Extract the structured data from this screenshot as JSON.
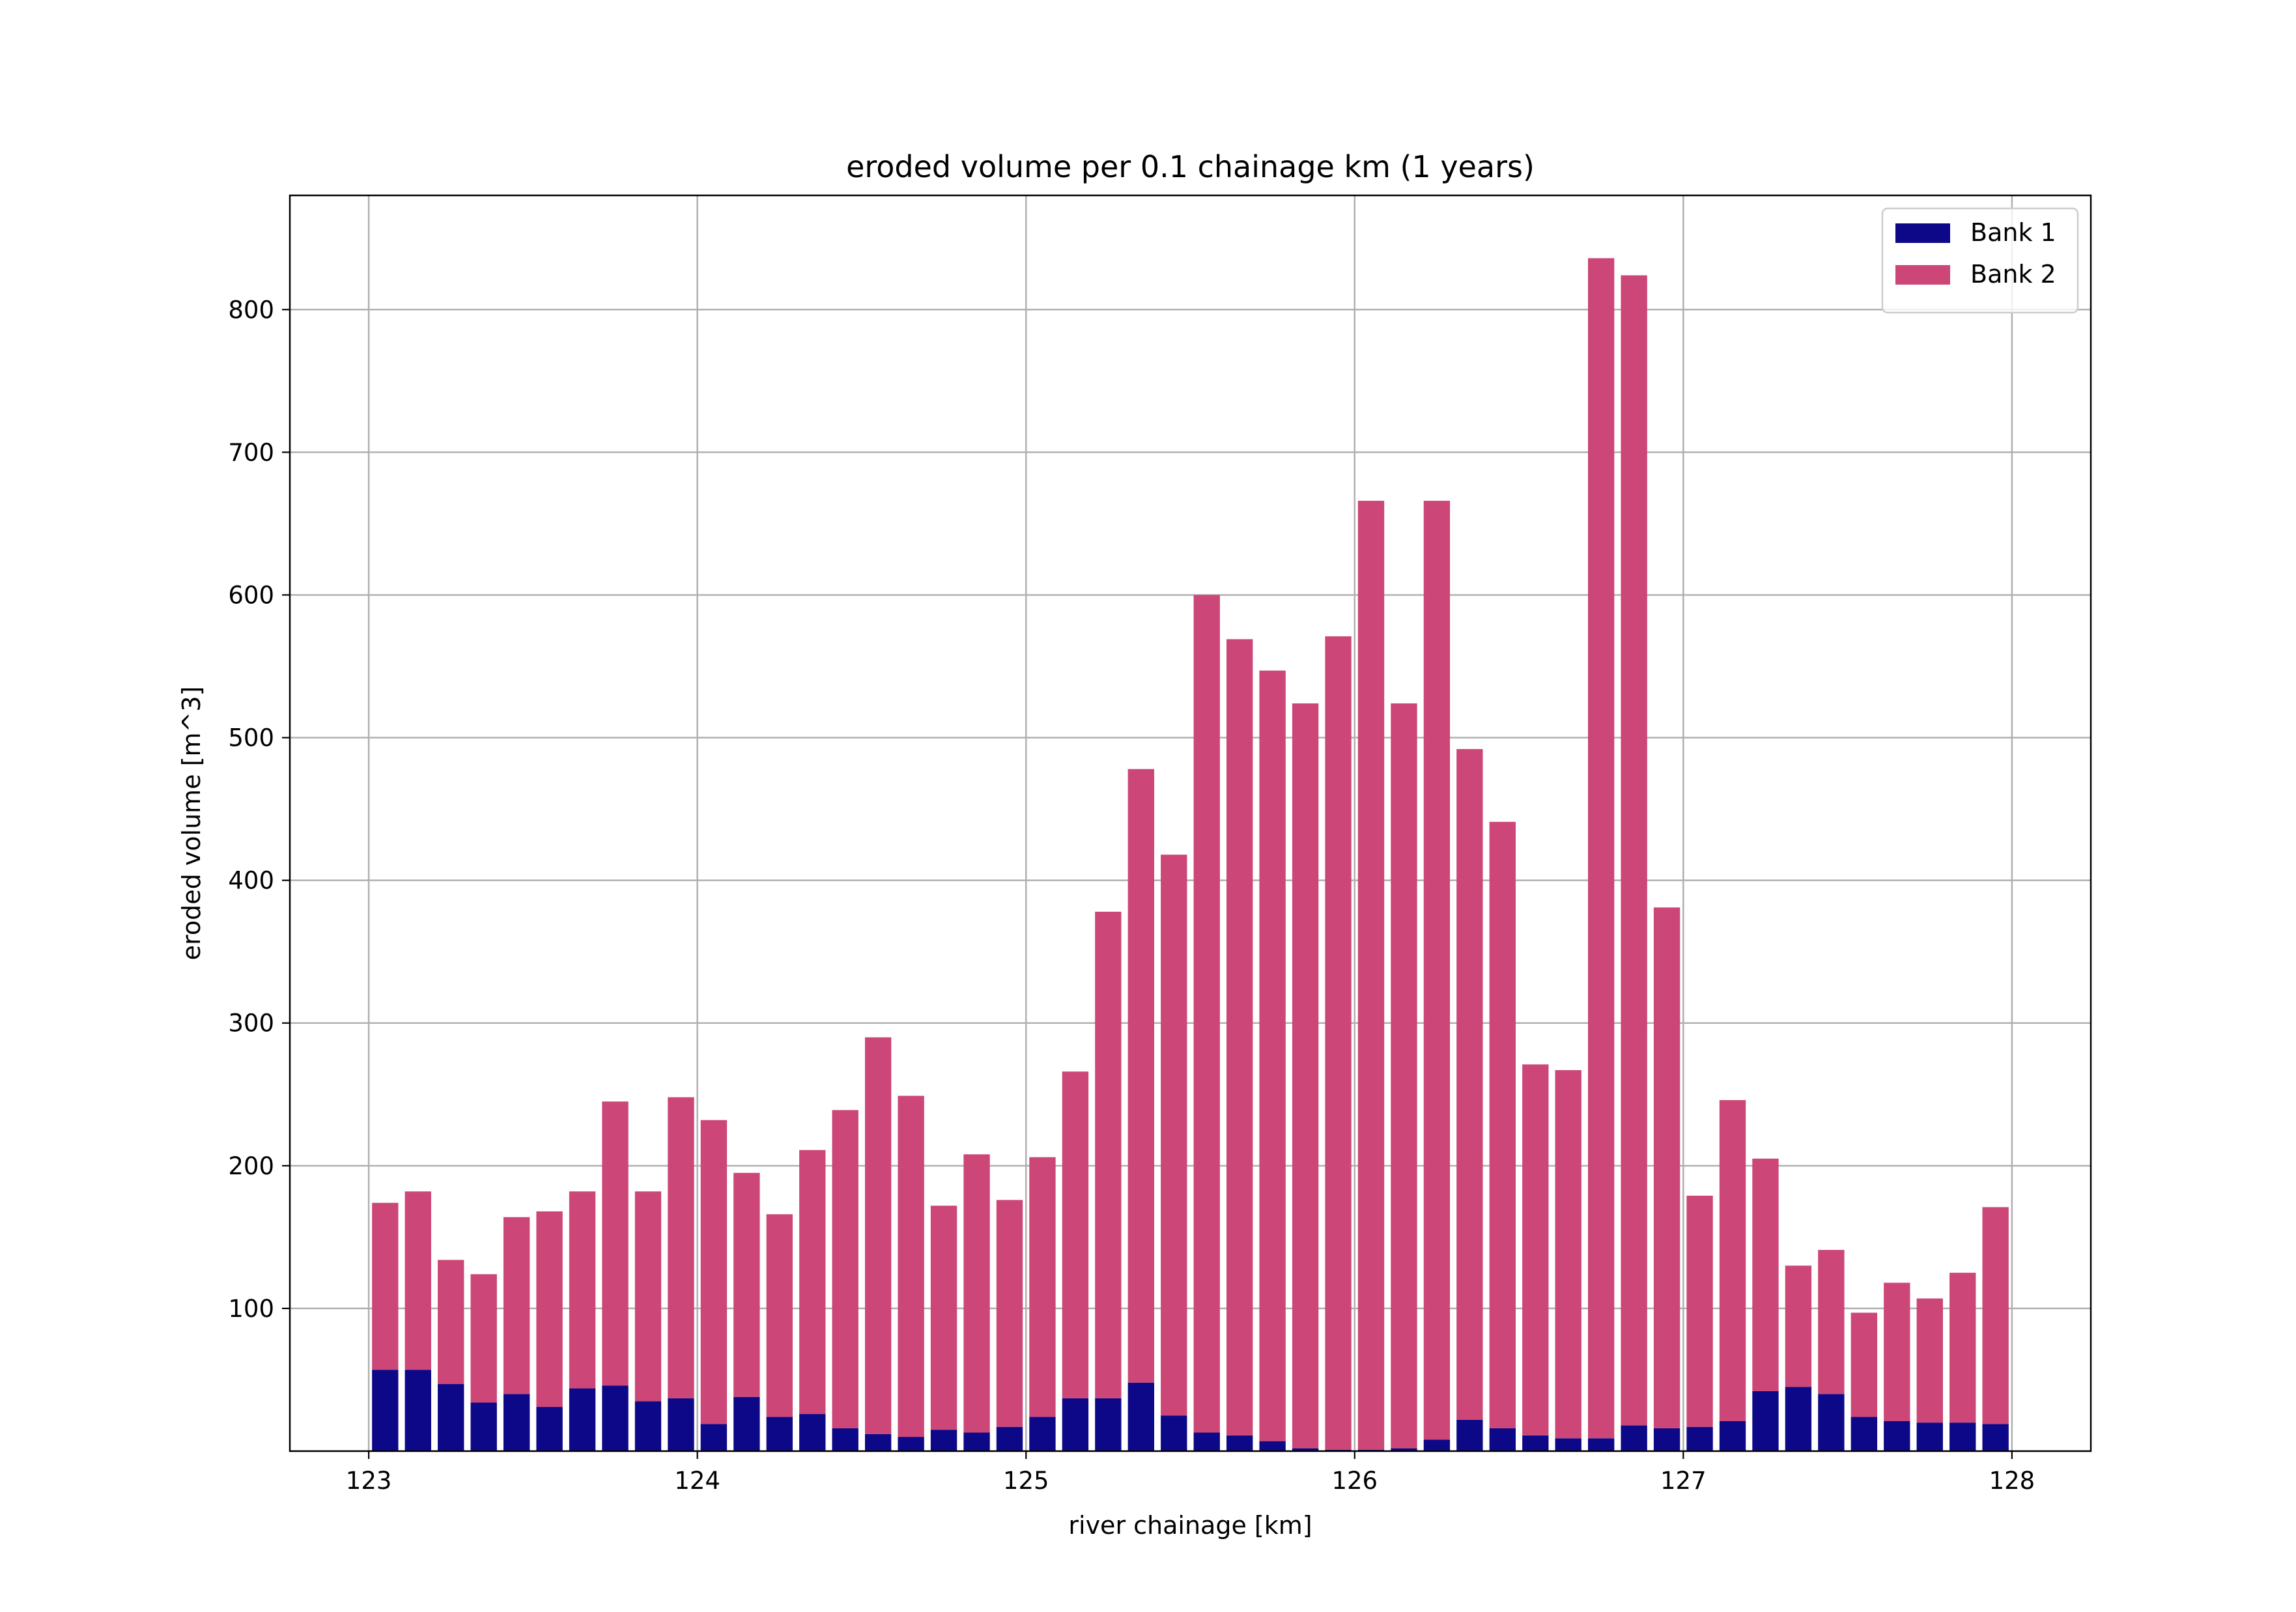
{
  "chart_data": {
    "type": "bar",
    "stacked": true,
    "title": "eroded volume per 0.1 chainage km (1 years)",
    "xlabel": "river chainage [km]",
    "ylabel": "eroded volume [m^3]",
    "xlim": [
      122.76,
      128.24
    ],
    "ylim": [
      0,
      880
    ],
    "xticks": [
      123,
      124,
      125,
      126,
      127,
      128
    ],
    "yticks": [
      100,
      200,
      300,
      400,
      500,
      600,
      700,
      800
    ],
    "grid": true,
    "legend_position": "top-right",
    "bar_width_km": 0.08,
    "x": [
      123.05,
      123.15,
      123.25,
      123.35,
      123.45,
      123.55,
      123.65,
      123.75,
      123.85,
      123.95,
      124.05,
      124.15,
      124.25,
      124.35,
      124.45,
      124.55,
      124.65,
      124.75,
      124.85,
      124.95,
      125.05,
      125.15,
      125.25,
      125.35,
      125.45,
      125.55,
      125.65,
      125.75,
      125.85,
      125.95,
      126.05,
      126.15,
      126.25,
      126.35,
      126.45,
      126.55,
      126.65,
      126.75,
      126.85,
      126.95,
      127.05,
      127.15,
      127.25,
      127.35,
      127.45,
      127.55,
      127.65,
      127.75,
      127.85,
      127.95
    ],
    "series": [
      {
        "name": "Bank 1",
        "color": "#0d0887",
        "values": [
          57,
          57,
          47,
          34,
          40,
          31,
          44,
          46,
          35,
          37,
          19,
          38,
          24,
          26,
          16,
          12,
          10,
          15,
          13,
          17,
          24,
          37,
          37,
          48,
          25,
          13,
          11,
          7,
          2,
          1,
          1,
          2,
          8,
          22,
          16,
          11,
          9,
          9,
          18,
          16,
          17,
          21,
          42,
          45,
          40,
          24,
          21,
          20,
          20,
          19
        ]
      },
      {
        "name": "Bank 2",
        "color": "#cc4778",
        "values": [
          117,
          125,
          87,
          90,
          124,
          137,
          138,
          199,
          147,
          211,
          213,
          157,
          142,
          185,
          223,
          278,
          239,
          157,
          195,
          159,
          182,
          229,
          341,
          430,
          393,
          587,
          558,
          540,
          522,
          570,
          665,
          522,
          658,
          470,
          425,
          260,
          258,
          827,
          806,
          365,
          162,
          225,
          163,
          85,
          101,
          73,
          97,
          87,
          105,
          152
        ]
      }
    ]
  }
}
